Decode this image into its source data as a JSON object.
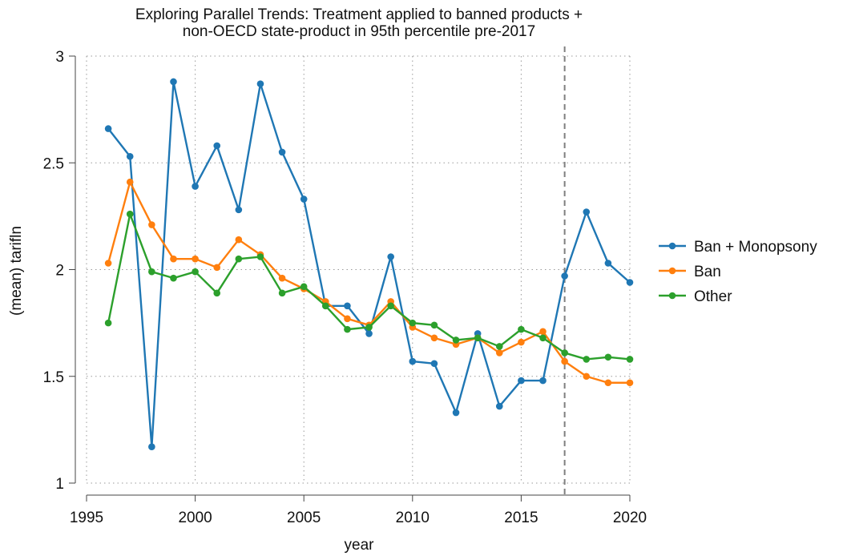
{
  "chart_data": {
    "type": "line",
    "title_lines": [
      "Exploring Parallel Trends: Treatment applied to banned products +",
      "non-OECD state-product in 95th percentile pre-2017"
    ],
    "xlabel": "year",
    "ylabel": "(mean) tarifln",
    "xlim": [
      1995,
      2020
    ],
    "ylim": [
      1,
      3
    ],
    "xticks": [
      1995,
      2000,
      2005,
      2010,
      2015,
      2020
    ],
    "yticks": [
      1,
      1.5,
      2,
      2.5,
      3
    ],
    "ytick_labels": [
      "1",
      "1.5",
      "2",
      "2.5",
      "3"
    ],
    "grid": true,
    "legend": "right",
    "reference_line": {
      "x": 2017,
      "style": "dashed",
      "color": "#7f7f7f"
    },
    "x": [
      1996,
      1997,
      1998,
      1999,
      2000,
      2001,
      2002,
      2003,
      2004,
      2005,
      2006,
      2007,
      2008,
      2009,
      2010,
      2011,
      2012,
      2013,
      2014,
      2015,
      2016,
      2017,
      2018,
      2019,
      2020
    ],
    "series": [
      {
        "name": "Ban + Monopsony",
        "color": "#1f77b4",
        "values": [
          2.66,
          2.53,
          1.17,
          2.88,
          2.39,
          2.58,
          2.28,
          2.87,
          2.55,
          2.33,
          1.83,
          1.83,
          1.7,
          2.06,
          1.57,
          1.56,
          1.33,
          1.7,
          1.36,
          1.48,
          1.48,
          1.97,
          2.27,
          2.03,
          1.94
        ]
      },
      {
        "name": "Ban",
        "color": "#ff7f0e",
        "values": [
          2.03,
          2.41,
          2.21,
          2.05,
          2.05,
          2.01,
          2.14,
          2.07,
          1.96,
          1.91,
          1.85,
          1.77,
          1.74,
          1.85,
          1.73,
          1.68,
          1.65,
          1.68,
          1.61,
          1.66,
          1.71,
          1.57,
          1.5,
          1.47,
          1.47
        ]
      },
      {
        "name": "Other",
        "color": "#2ca02c",
        "values": [
          1.75,
          2.26,
          1.99,
          1.96,
          1.99,
          1.89,
          2.05,
          2.06,
          1.89,
          1.92,
          1.83,
          1.72,
          1.73,
          1.83,
          1.75,
          1.74,
          1.67,
          1.68,
          1.64,
          1.72,
          1.68,
          1.61,
          1.58,
          1.59,
          1.58
        ]
      }
    ]
  }
}
